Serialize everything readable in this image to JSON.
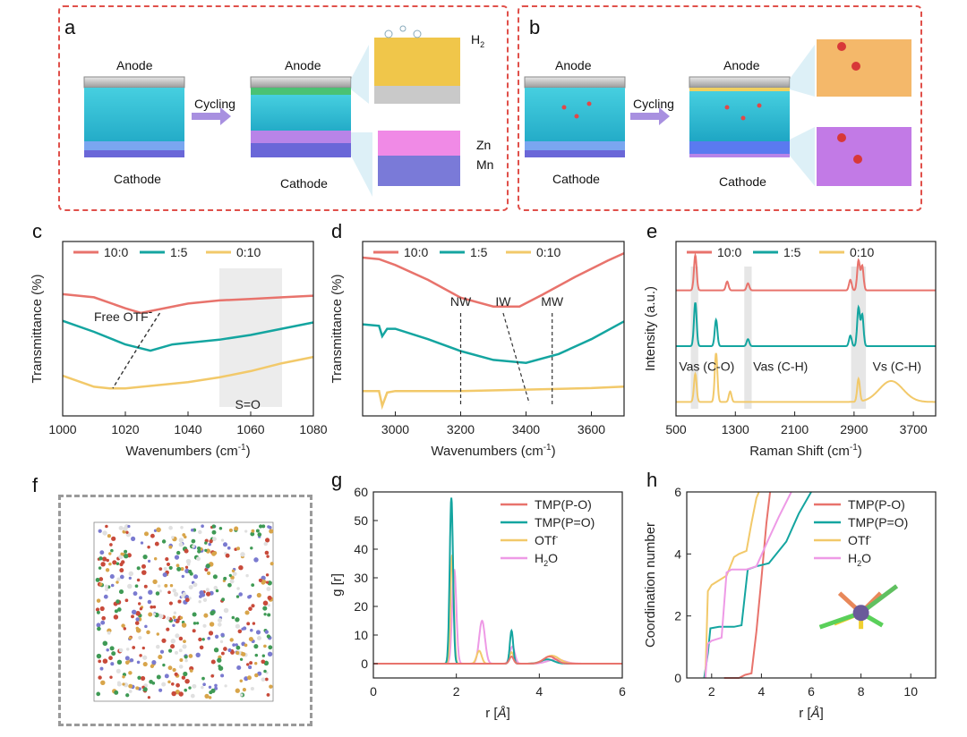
{
  "schematic": {
    "a": {
      "label": "a",
      "anode": "Anode",
      "cathode": "Cathode",
      "anode2": "Anode",
      "cathode2": "Cathode",
      "cycling": "Cycling",
      "h2": "H",
      "h2_sub": "2",
      "zn": "Zn",
      "mn": "Mn"
    },
    "b": {
      "label": "b",
      "anode": "Anode",
      "cathode": "Cathode",
      "anode2": "Anode",
      "cathode2": "Cathode",
      "cycling": "Cycling"
    }
  },
  "colors": {
    "red": "#e8736c",
    "teal": "#14a5a0",
    "yellow": "#f2c96a",
    "pink": "#ee9ae6",
    "panel_border": "#e0504a",
    "electrolyte": "#31c3d6"
  },
  "chart_data": [
    {
      "id": "c",
      "label": "c",
      "type": "line",
      "xlabel": "Wavenumbers (cm",
      "xlabel_sup": "-1",
      "ylabel": "Transmittance (%)",
      "xlim": [
        1000,
        1080
      ],
      "xticks": [
        "1000",
        "1020",
        "1040",
        "1060",
        "1080"
      ],
      "legend": [
        "10:0",
        "1:5",
        "0:10"
      ],
      "annotations": {
        "free": "Free OTF",
        "free_sup": "-",
        "so": "S=O"
      },
      "series": [
        {
          "name": "10:0",
          "x": [
            1000,
            1010,
            1020,
            1025,
            1030,
            1040,
            1050,
            1060,
            1070,
            1080
          ],
          "y": [
            0.72,
            0.7,
            0.63,
            0.6,
            0.62,
            0.66,
            0.68,
            0.69,
            0.7,
            0.71
          ]
        },
        {
          "name": "1:5",
          "x": [
            1000,
            1010,
            1020,
            1028,
            1035,
            1040,
            1050,
            1060,
            1070,
            1080
          ],
          "y": [
            0.55,
            0.48,
            0.4,
            0.36,
            0.4,
            0.41,
            0.43,
            0.46,
            0.5,
            0.54
          ]
        },
        {
          "name": "0:10",
          "x": [
            1000,
            1010,
            1015,
            1020,
            1030,
            1040,
            1050,
            1060,
            1070,
            1080
          ],
          "y": [
            0.2,
            0.13,
            0.12,
            0.12,
            0.14,
            0.16,
            0.19,
            0.23,
            0.28,
            0.32
          ]
        }
      ]
    },
    {
      "id": "d",
      "label": "d",
      "type": "line",
      "xlabel": "Wavenumbers (cm",
      "xlabel_sup": "-1",
      "ylabel": "Transmittance (%)",
      "xlim": [
        2900,
        3700
      ],
      "xticks": [
        "3000",
        "3200",
        "3400",
        "3600"
      ],
      "xtick_values": [
        3000,
        3200,
        3400,
        3600
      ],
      "legend": [
        "10:0",
        "1:5",
        "0:10"
      ],
      "annotations": {
        "nw": "NW",
        "iw": "IW",
        "mw": "MW"
      },
      "series": [
        {
          "name": "10:0",
          "x": [
            2900,
            2950,
            3000,
            3100,
            3200,
            3300,
            3380,
            3450,
            3550,
            3650,
            3700
          ],
          "y": [
            0.95,
            0.94,
            0.9,
            0.8,
            0.68,
            0.62,
            0.62,
            0.7,
            0.82,
            0.93,
            0.98
          ]
        },
        {
          "name": "1:5",
          "x": [
            2900,
            2950,
            2960,
            2975,
            3000,
            3100,
            3200,
            3300,
            3400,
            3500,
            3600,
            3700
          ],
          "y": [
            0.5,
            0.49,
            0.42,
            0.47,
            0.47,
            0.4,
            0.32,
            0.26,
            0.24,
            0.3,
            0.4,
            0.52
          ]
        },
        {
          "name": "0:10",
          "x": [
            2900,
            2950,
            2960,
            2975,
            3000,
            3200,
            3400,
            3600,
            3700
          ],
          "y": [
            0.05,
            0.05,
            -0.05,
            0.04,
            0.05,
            0.05,
            0.06,
            0.07,
            0.08
          ]
        }
      ]
    },
    {
      "id": "e",
      "label": "e",
      "type": "line",
      "xlabel": "Raman Shift (cm",
      "xlabel_sup": "-1",
      "ylabel": "Intensity (a.u.)",
      "xlim": [
        500,
        4000
      ],
      "xticks": [
        "500",
        "1300",
        "2100",
        "2900",
        "3700"
      ],
      "xtick_values": [
        500,
        1300,
        2100,
        2900,
        3700
      ],
      "legend": [
        "10:0",
        "1:5",
        "0:10"
      ],
      "annotations": {
        "vas_co": "Vas (C-O)",
        "vas_ch": "Vas (C-H)",
        "vs_ch": "Vs (C-H)"
      },
      "series": [
        {
          "name": "10:0",
          "offset": 0.72,
          "peaks": [
            [
              760,
              0.2
            ],
            [
              1190,
              0.05
            ],
            [
              1470,
              0.04
            ],
            [
              2850,
              0.06
            ],
            [
              2960,
              0.17
            ],
            [
              3010,
              0.14
            ]
          ]
        },
        {
          "name": "1:5",
          "offset": 0.4,
          "peaks": [
            [
              760,
              0.25
            ],
            [
              1040,
              0.15
            ],
            [
              1470,
              0.04
            ],
            [
              2850,
              0.06
            ],
            [
              2960,
              0.22
            ],
            [
              3010,
              0.18
            ]
          ]
        },
        {
          "name": "0:10",
          "offset": 0.08,
          "peaks": [
            [
              760,
              0.16
            ],
            [
              1040,
              0.28
            ],
            [
              1230,
              0.06
            ],
            [
              2960,
              0.13
            ],
            [
              3400,
              0.12
            ]
          ]
        }
      ]
    },
    {
      "id": "g",
      "label": "g",
      "type": "line",
      "xlabel": "r [",
      "xlabel_unit": "Å",
      "xlabel_end": "]",
      "ylabel": "g [r]",
      "xlim": [
        0,
        6
      ],
      "ylim": [
        -5,
        60
      ],
      "xticks": [
        "0",
        "2",
        "4",
        "6"
      ],
      "xtick_values": [
        0,
        2,
        4,
        6
      ],
      "yticks": [
        "0",
        "10",
        "20",
        "30",
        "40",
        "50",
        "60"
      ],
      "ytick_values": [
        0,
        10,
        20,
        30,
        40,
        50,
        60
      ],
      "legend": [
        "TMP(P-O)",
        "TMP(P=O)",
        "OTf",
        "H"
      ],
      "legend_extra": {
        "otf_sup": "-",
        "h2o_sub": "2",
        "h2o_end": "O"
      },
      "series": [
        {
          "name": "TMP(P-O)",
          "peaks": [
            [
              3.33,
              2.5,
              0.05
            ],
            [
              4.25,
              2.5,
              0.15
            ]
          ]
        },
        {
          "name": "TMP(P=O)",
          "peaks": [
            [
              1.88,
              58,
              0.04
            ],
            [
              3.33,
              11.5,
              0.04
            ],
            [
              4.2,
              1.5,
              0.15
            ]
          ]
        },
        {
          "name": "OTf",
          "peaks": [
            [
              1.9,
              38,
              0.04
            ],
            [
              2.55,
              4.5,
              0.06
            ],
            [
              3.33,
              4,
              0.05
            ],
            [
              4.3,
              2.8,
              0.18
            ]
          ]
        },
        {
          "name": "H2O",
          "peaks": [
            [
              1.95,
              33,
              0.05
            ],
            [
              2.62,
              15,
              0.07
            ],
            [
              3.35,
              6,
              0.06
            ],
            [
              4.4,
              1.5,
              0.2
            ]
          ]
        }
      ]
    },
    {
      "id": "h",
      "label": "h",
      "type": "line",
      "xlabel": "r [",
      "xlabel_unit": "Å",
      "xlabel_end": "]",
      "ylabel": "Coordination number",
      "xlim": [
        1,
        11
      ],
      "ylim": [
        0,
        6
      ],
      "xticks": [
        "2",
        "4",
        "6",
        "8",
        "10"
      ],
      "xtick_values": [
        2,
        4,
        6,
        8,
        10
      ],
      "yticks": [
        "0",
        "2",
        "4",
        "6"
      ],
      "ytick_values": [
        0,
        2,
        4,
        6
      ],
      "legend": [
        "TMP(P-O)",
        "TMP(P=O)",
        "OTf",
        "H"
      ],
      "legend_extra": {
        "otf_sup": "-",
        "h2o_sub": "2",
        "h2o_end": "O"
      },
      "series": [
        {
          "name": "TMP(P-O)",
          "x": [
            2.5,
            3.1,
            3.35,
            3.6,
            3.8,
            4.0,
            4.2,
            4.35
          ],
          "y": [
            0,
            0,
            0.1,
            0.15,
            1.5,
            3.2,
            5.0,
            6.0
          ]
        },
        {
          "name": "TMP(P=O)",
          "x": [
            1.7,
            1.85,
            1.95,
            2.3,
            2.9,
            3.2,
            3.45,
            3.8,
            4.3,
            5.0,
            5.5,
            6.0
          ],
          "y": [
            0,
            0.8,
            1.6,
            1.65,
            1.65,
            1.7,
            3.5,
            3.6,
            3.7,
            4.4,
            5.3,
            6.0
          ]
        },
        {
          "name": "OTf",
          "x": [
            1.75,
            1.85,
            2.0,
            2.2,
            2.6,
            2.9,
            3.1,
            3.4,
            3.6,
            3.8,
            3.9
          ],
          "y": [
            0,
            2.8,
            3.0,
            3.1,
            3.3,
            3.9,
            4.0,
            4.1,
            5.0,
            5.8,
            6.0
          ]
        },
        {
          "name": "H2O",
          "x": [
            1.75,
            1.85,
            2.0,
            2.4,
            2.6,
            2.8,
            3.4,
            3.8,
            4.3,
            4.7,
            5.2
          ],
          "y": [
            0,
            1.1,
            1.2,
            1.3,
            3.4,
            3.5,
            3.5,
            3.6,
            4.5,
            5.2,
            6.0
          ]
        }
      ]
    }
  ],
  "panel_f": {
    "label": "f"
  }
}
